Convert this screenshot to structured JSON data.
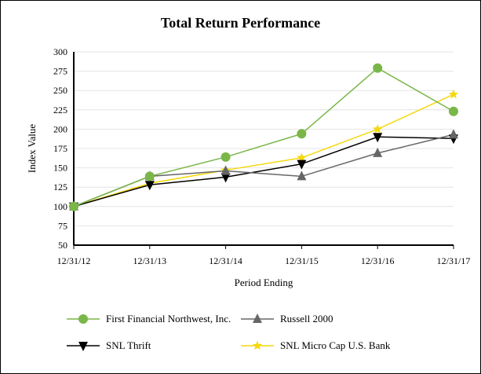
{
  "chart_data": {
    "type": "line",
    "title": "Total Return Performance",
    "xlabel": "Period Ending",
    "ylabel": "Index Value",
    "categories": [
      "12/31/12",
      "12/31/13",
      "12/31/14",
      "12/31/15",
      "12/31/16",
      "12/31/17"
    ],
    "ylim": [
      50,
      300
    ],
    "yticks": [
      50,
      75,
      100,
      125,
      150,
      175,
      200,
      225,
      250,
      275,
      300
    ],
    "grid": true,
    "legend": "bottom",
    "series": [
      {
        "name": "First Financial Northwest, Inc.",
        "color": "#7ab648",
        "marker": "circle",
        "values": [
          100,
          139,
          164,
          194,
          279,
          223
        ]
      },
      {
        "name": "Russell 2000",
        "color": "#666666",
        "marker": "triangle-up",
        "values": [
          100,
          139,
          146,
          139,
          169,
          193
        ]
      },
      {
        "name": "SNL Thrift",
        "color": "#000000",
        "marker": "triangle-down",
        "values": [
          100,
          128,
          138,
          155,
          190,
          188
        ]
      },
      {
        "name": "SNL Micro Cap U.S. Bank",
        "color": "#f5d90a",
        "marker": "star",
        "values": [
          100,
          130,
          147,
          163,
          200,
          245
        ]
      }
    ]
  }
}
